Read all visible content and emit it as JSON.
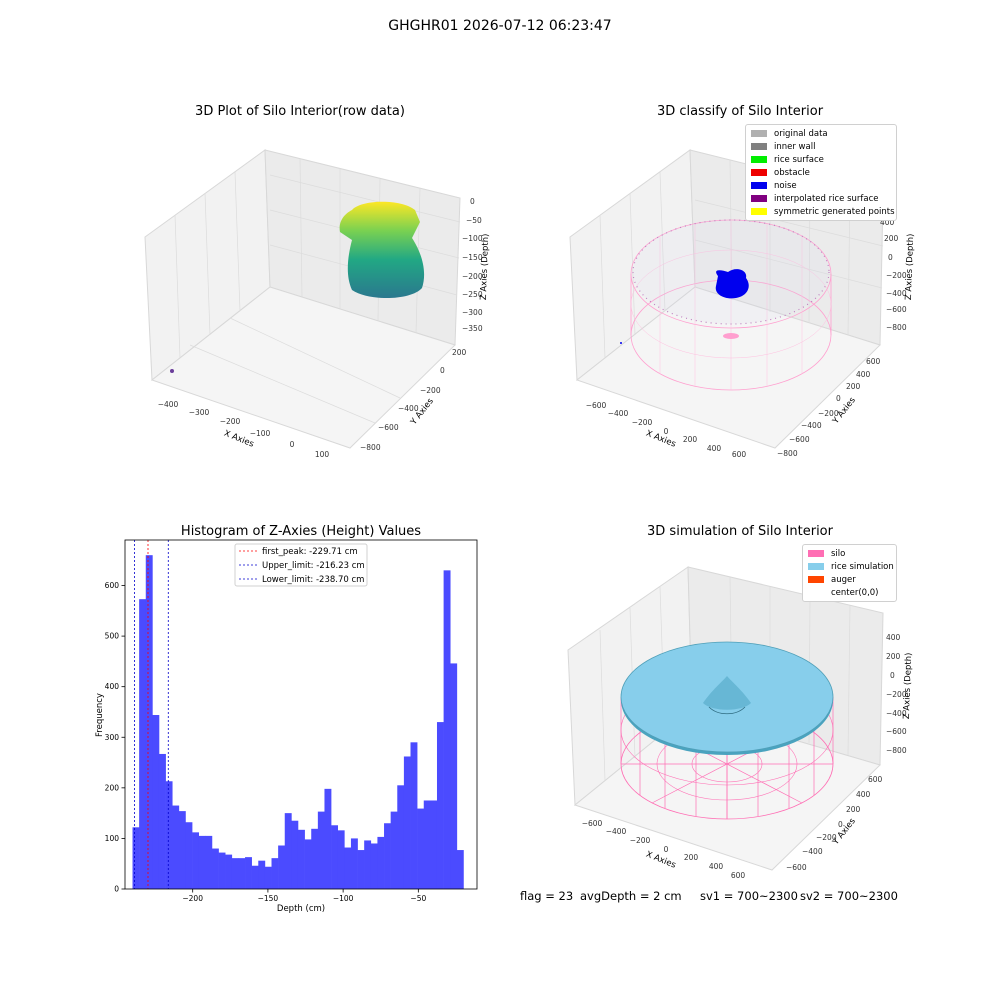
{
  "suptitle": "GHGHR01 2026-07-12 06:23:47",
  "colors": {
    "hist_bar": "#4b4bff",
    "first_peak": "#ff0000",
    "upper_limit": "#0000cc",
    "lower_limit": "#0000cc",
    "silo": "#ff6eb4",
    "rice_simulation": "#87ceeb",
    "auger": "#ff4500",
    "original_data": "#b0b0b0",
    "inner_wall": "#808080",
    "rice_surface": "#00ee00",
    "obstacle": "#ee0000",
    "noise": "#0000ee",
    "interpolated_rice_surface": "#800080",
    "symmetric_generated_points": "#ffff00"
  },
  "panel_raw": {
    "title": "3D Plot of Silo Interior(row data)",
    "xlabel": "X Axies",
    "ylabel": "Y Axies",
    "zlabel": "Z Axies (Depth)",
    "x_ticks": [
      "−400",
      "−300",
      "−200",
      "−100",
      "0",
      "100"
    ],
    "y_ticks": [
      "200",
      "0",
      "−200",
      "−400",
      "−600",
      "−800"
    ],
    "z_ticks": [
      "0",
      "−50",
      "−100",
      "−150",
      "−200",
      "−250",
      "−300",
      "−350"
    ]
  },
  "panel_classify": {
    "title": "3D classify of Silo Interior",
    "xlabel": "X Axies",
    "ylabel": "Y Axies",
    "zlabel": "Z Axies (Depth)",
    "x_ticks": [
      "−600",
      "−400",
      "−200",
      "0",
      "200",
      "400",
      "600"
    ],
    "y_ticks": [
      "600",
      "400",
      "200",
      "0",
      "−200",
      "−400",
      "−600",
      "−800"
    ],
    "z_ticks": [
      "400",
      "200",
      "0",
      "−200",
      "−400",
      "−600",
      "−800"
    ],
    "legend": [
      {
        "label": "original data",
        "color_key": "original_data"
      },
      {
        "label": "inner wall",
        "color_key": "inner_wall"
      },
      {
        "label": "rice surface",
        "color_key": "rice_surface"
      },
      {
        "label": "obstacle",
        "color_key": "obstacle"
      },
      {
        "label": "noise",
        "color_key": "noise"
      },
      {
        "label": "interpolated rice surface",
        "color_key": "interpolated_rice_surface"
      },
      {
        "label": "symmetric generated points",
        "color_key": "symmetric_generated_points"
      }
    ]
  },
  "panel_sim": {
    "title": "3D simulation of Silo Interior",
    "xlabel": "X Axies",
    "ylabel": "Y Axies",
    "zlabel": "Z Axies (Depth)",
    "x_ticks": [
      "−600",
      "−400",
      "−200",
      "0",
      "200",
      "400",
      "600"
    ],
    "y_ticks": [
      "600",
      "400",
      "200",
      "0",
      "−200",
      "−400",
      "−600"
    ],
    "z_ticks": [
      "400",
      "200",
      "0",
      "−200",
      "−400",
      "−600",
      "−800"
    ],
    "legend": [
      {
        "label": "silo",
        "color_key": "silo"
      },
      {
        "label": "rice simulation",
        "color_key": "rice_simulation"
      },
      {
        "label": "auger",
        "color_key": "auger"
      },
      {
        "label": "center(0,0)",
        "color_key": ""
      }
    ]
  },
  "status": {
    "flag": "flag = 23",
    "avg_depth": "avgDepth = 2 cm",
    "sv1": "sv1 = 700~2300",
    "sv2": "sv2 = 700~2300"
  },
  "chart_data": {
    "type": "bar",
    "title": "Histogram of Z-Axies (Height) Values",
    "xlabel": "Depth (cm)",
    "ylabel": "Frequency",
    "xlim": [
      -245,
      -11
    ],
    "ylim": [
      0,
      690
    ],
    "xticks": [
      -200,
      -150,
      -100,
      -50
    ],
    "xtick_labels": [
      "−200",
      "−150",
      "−100",
      "−50"
    ],
    "yticks": [
      0,
      100,
      200,
      300,
      400,
      500,
      600
    ],
    "bin_start": -240,
    "bin_width": 4.4,
    "values": [
      122,
      573,
      660,
      344,
      267,
      213,
      165,
      154,
      132,
      112,
      105,
      105,
      80,
      72,
      68,
      61,
      61,
      63,
      46,
      56,
      44,
      61,
      86,
      150,
      135,
      117,
      98,
      119,
      153,
      198,
      126,
      116,
      82,
      100,
      77,
      96,
      90,
      103,
      130,
      153,
      205,
      262,
      290,
      159,
      175,
      175,
      330,
      630,
      446,
      77
    ],
    "vlines": [
      {
        "label": "first_peak: -229.71 cm",
        "x": -229.71,
        "color_key": "first_peak"
      },
      {
        "label": "Upper_limit: -216.23 cm",
        "x": -216.23,
        "color_key": "upper_limit"
      },
      {
        "label": "Lower_limit: -238.70 cm",
        "x": -238.7,
        "color_key": "lower_limit"
      }
    ],
    "legend_position": "top-center"
  }
}
